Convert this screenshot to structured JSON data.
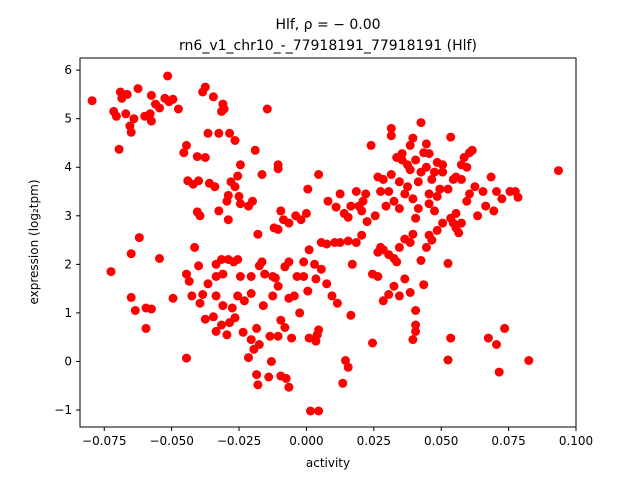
{
  "chart_data": {
    "type": "scatter",
    "title": "Hlf, ρ = − 0.00",
    "subtitle": "rn6_v1_chr10_-_77918191_77918191 (Hlf)",
    "xlabel": "activity",
    "ylabel": "expression (log₂tpm)",
    "xlim": [
      -0.084,
      0.1
    ],
    "ylim": [
      -1.35,
      6.25
    ],
    "xticks": [
      -0.075,
      -0.05,
      -0.025,
      0.0,
      0.025,
      0.05,
      0.075,
      0.1
    ],
    "xtick_labels": [
      "−0.075",
      "−0.050",
      "−0.025",
      "0.000",
      "0.025",
      "0.050",
      "0.075",
      "0.100"
    ],
    "yticks": [
      -1,
      0,
      1,
      2,
      3,
      4,
      5,
      6
    ],
    "ytick_labels": [
      "−1",
      "0",
      "1",
      "2",
      "3",
      "4",
      "5",
      "6"
    ],
    "grid": false,
    "marker_color": "#ff0000",
    "points": [
      [
        -0.0795,
        5.37
      ],
      [
        -0.0715,
        5.15
      ],
      [
        -0.0705,
        5.05
      ],
      [
        -0.069,
        5.55
      ],
      [
        -0.0685,
        5.42
      ],
      [
        -0.067,
        5.1
      ],
      [
        -0.0665,
        5.5
      ],
      [
        -0.064,
        5.0
      ],
      [
        -0.0655,
        4.85
      ],
      [
        -0.0625,
        5.62
      ],
      [
        -0.06,
        5.05
      ],
      [
        -0.058,
        5.1
      ],
      [
        -0.0575,
        5.48
      ],
      [
        -0.056,
        5.3
      ],
      [
        -0.0545,
        5.22
      ],
      [
        -0.0525,
        5.42
      ],
      [
        -0.051,
        5.35
      ],
      [
        -0.0515,
        5.88
      ],
      [
        -0.0495,
        5.4
      ],
      [
        -0.0475,
        5.2
      ],
      [
        -0.0575,
        4.95
      ],
      [
        -0.0695,
        4.37
      ],
      [
        -0.065,
        4.72
      ],
      [
        -0.0385,
        5.55
      ],
      [
        -0.0375,
        5.65
      ],
      [
        -0.0345,
        5.45
      ],
      [
        -0.031,
        5.3
      ],
      [
        -0.0315,
        5.15
      ],
      [
        -0.0305,
        5.2
      ],
      [
        -0.0145,
        5.2
      ],
      [
        -0.0445,
        4.45
      ],
      [
        -0.0455,
        4.3
      ],
      [
        -0.0405,
        4.22
      ],
      [
        -0.0365,
        4.7
      ],
      [
        -0.0375,
        4.2
      ],
      [
        -0.0325,
        4.7
      ],
      [
        -0.0285,
        4.7
      ],
      [
        -0.0265,
        4.55
      ],
      [
        -0.019,
        4.35
      ],
      [
        -0.0165,
        3.85
      ],
      [
        -0.0245,
        4.05
      ],
      [
        -0.0255,
        3.82
      ],
      [
        -0.0105,
        4.05
      ],
      [
        -0.0105,
        3.97
      ],
      [
        -0.044,
        3.72
      ],
      [
        -0.042,
        3.65
      ],
      [
        -0.04,
        3.72
      ],
      [
        -0.036,
        3.67
      ],
      [
        -0.034,
        3.6
      ],
      [
        -0.028,
        3.7
      ],
      [
        -0.0265,
        3.6
      ],
      [
        -0.029,
        3.42
      ],
      [
        -0.0295,
        3.3
      ],
      [
        -0.025,
        3.4
      ],
      [
        -0.02,
        3.3
      ],
      [
        -0.0405,
        3.08
      ],
      [
        -0.0395,
        3.0
      ],
      [
        -0.0325,
        3.1
      ],
      [
        -0.029,
        2.92
      ],
      [
        -0.0245,
        3.25
      ],
      [
        -0.0215,
        3.2
      ],
      [
        -0.018,
        2.62
      ],
      [
        -0.012,
        2.75
      ],
      [
        -0.0105,
        2.72
      ],
      [
        -0.0095,
        3.1
      ],
      [
        -0.0085,
        2.92
      ],
      [
        -0.0065,
        2.85
      ],
      [
        -0.002,
        2.92
      ],
      [
        -0.004,
        3.0
      ],
      [
        0.0,
        3.05
      ],
      [
        0.0005,
        3.55
      ],
      [
        0.0045,
        3.85
      ],
      [
        0.008,
        3.3
      ],
      [
        0.011,
        3.18
      ],
      [
        0.0125,
        3.45
      ],
      [
        0.014,
        3.05
      ],
      [
        0.0155,
        2.97
      ],
      [
        0.0165,
        3.2
      ],
      [
        0.0185,
        3.5
      ],
      [
        0.0195,
        3.2
      ],
      [
        0.021,
        3.3
      ],
      [
        0.0205,
        3.1
      ],
      [
        0.022,
        3.45
      ],
      [
        0.024,
        4.45
      ],
      [
        -0.062,
        2.55
      ],
      [
        -0.065,
        2.22
      ],
      [
        -0.0545,
        2.12
      ],
      [
        -0.0415,
        2.35
      ],
      [
        -0.04,
        1.97
      ],
      [
        -0.0335,
        2.0
      ],
      [
        -0.0315,
        2.1
      ],
      [
        -0.029,
        2.1
      ],
      [
        -0.027,
        2.05
      ],
      [
        -0.0255,
        2.1
      ],
      [
        -0.0245,
        1.75
      ],
      [
        -0.031,
        1.8
      ],
      [
        -0.0335,
        1.75
      ],
      [
        -0.0205,
        1.75
      ],
      [
        -0.0175,
        1.97
      ],
      [
        -0.0165,
        2.05
      ],
      [
        -0.0155,
        1.8
      ],
      [
        -0.0125,
        1.75
      ],
      [
        -0.0115,
        1.72
      ],
      [
        -0.008,
        1.95
      ],
      [
        -0.0065,
        2.05
      ],
      [
        -0.0035,
        1.75
      ],
      [
        -0.001,
        2.05
      ],
      [
        0.001,
        2.3
      ],
      [
        0.003,
        2.0
      ],
      [
        0.0055,
        2.45
      ],
      [
        0.0075,
        2.42
      ],
      [
        0.0105,
        2.45
      ],
      [
        0.0125,
        2.45
      ],
      [
        0.0155,
        2.48
      ],
      [
        0.017,
        2.0
      ],
      [
        0.0185,
        2.45
      ],
      [
        0.0205,
        2.6
      ],
      [
        0.0225,
        2.88
      ],
      [
        -0.0725,
        1.85
      ],
      [
        -0.065,
        1.32
      ],
      [
        -0.0635,
        1.05
      ],
      [
        -0.0595,
        1.1
      ],
      [
        -0.0575,
        1.08
      ],
      [
        -0.0595,
        0.68
      ],
      [
        -0.0495,
        1.3
      ],
      [
        -0.0445,
        1.8
      ],
      [
        -0.0435,
        1.65
      ],
      [
        -0.0425,
        1.35
      ],
      [
        -0.0395,
        1.2
      ],
      [
        -0.0385,
        1.38
      ],
      [
        -0.0365,
        1.6
      ],
      [
        -0.0335,
        1.35
      ],
      [
        -0.031,
        1.15
      ],
      [
        -0.0275,
        1.1
      ],
      [
        -0.0255,
        1.35
      ],
      [
        -0.023,
        1.25
      ],
      [
        -0.0205,
        1.4
      ],
      [
        -0.016,
        1.15
      ],
      [
        -0.0125,
        1.35
      ],
      [
        -0.0105,
        1.55
      ],
      [
        -0.0065,
        1.3
      ],
      [
        -0.0045,
        1.35
      ],
      [
        -0.0025,
        1.0
      ],
      [
        -0.001,
        1.75
      ],
      [
        0.0005,
        1.45
      ],
      [
        0.0035,
        1.7
      ],
      [
        0.0055,
        1.9
      ],
      [
        0.0075,
        1.6
      ],
      [
        0.0095,
        1.35
      ],
      [
        0.0115,
        1.2
      ],
      [
        0.0165,
        0.95
      ],
      [
        -0.0375,
        0.87
      ],
      [
        -0.0345,
        0.92
      ],
      [
        -0.0335,
        0.62
      ],
      [
        -0.0315,
        0.75
      ],
      [
        -0.0295,
        0.55
      ],
      [
        -0.0285,
        0.8
      ],
      [
        -0.0265,
        0.9
      ],
      [
        -0.0235,
        0.6
      ],
      [
        -0.0205,
        0.45
      ],
      [
        -0.0185,
        0.68
      ],
      [
        -0.0175,
        0.35
      ],
      [
        -0.0135,
        0.52
      ],
      [
        -0.0105,
        0.52
      ],
      [
        -0.0095,
        0.85
      ],
      [
        -0.008,
        0.7
      ],
      [
        -0.0055,
        0.48
      ],
      [
        0.001,
        0.48
      ],
      [
        0.0035,
        0.42
      ],
      [
        0.004,
        0.55
      ],
      [
        0.0045,
        0.65
      ],
      [
        -0.0445,
        0.07
      ],
      [
        -0.0215,
        0.08
      ],
      [
        -0.0195,
        0.25
      ],
      [
        -0.013,
        0.0
      ],
      [
        -0.0185,
        -0.27
      ],
      [
        -0.018,
        -0.48
      ],
      [
        -0.014,
        -0.32
      ],
      [
        -0.0095,
        -0.3
      ],
      [
        -0.0065,
        -0.53
      ],
      [
        -0.0075,
        -0.35
      ],
      [
        0.0015,
        -1.02
      ],
      [
        0.0045,
        -1.02
      ],
      [
        0.0145,
        0.02
      ],
      [
        0.0135,
        -0.45
      ],
      [
        0.0155,
        -0.12
      ],
      [
        0.0245,
        0.38
      ],
      [
        0.0285,
        1.25
      ],
      [
        0.0305,
        1.38
      ],
      [
        0.0325,
        1.55
      ],
      [
        0.0345,
        1.35
      ],
      [
        0.0245,
        1.8
      ],
      [
        0.0265,
        1.75
      ],
      [
        0.0365,
        1.7
      ],
      [
        0.0385,
        1.42
      ],
      [
        0.0405,
        1.05
      ],
      [
        0.0435,
        1.58
      ],
      [
        0.0405,
        0.75
      ],
      [
        0.0405,
        0.62
      ],
      [
        0.0395,
        0.45
      ],
      [
        0.0525,
        0.03
      ],
      [
        0.0535,
        0.48
      ],
      [
        0.0675,
        0.48
      ],
      [
        0.0705,
        0.35
      ],
      [
        0.0715,
        -0.22
      ],
      [
        0.0735,
        0.68
      ],
      [
        0.0825,
        0.02
      ],
      [
        0.0265,
        2.25
      ],
      [
        0.0275,
        2.35
      ],
      [
        0.0285,
        2.3
      ],
      [
        0.0305,
        2.2
      ],
      [
        0.0325,
        2.12
      ],
      [
        0.0335,
        2.05
      ],
      [
        0.0345,
        2.35
      ],
      [
        0.0365,
        2.52
      ],
      [
        0.0385,
        2.45
      ],
      [
        0.0395,
        2.62
      ],
      [
        0.0405,
        2.95
      ],
      [
        0.0425,
        2.08
      ],
      [
        0.0445,
        2.35
      ],
      [
        0.0455,
        2.6
      ],
      [
        0.0465,
        2.5
      ],
      [
        0.0485,
        2.7
      ],
      [
        0.0505,
        2.85
      ],
      [
        0.0525,
        2.02
      ],
      [
        0.0545,
        2.85
      ],
      [
        0.0555,
        2.75
      ],
      [
        0.0565,
        2.65
      ],
      [
        0.0575,
        2.85
      ],
      [
        0.0255,
        3.0
      ],
      [
        0.0265,
        3.8
      ],
      [
        0.0275,
        3.5
      ],
      [
        0.0295,
        3.2
      ],
      [
        0.0305,
        3.5
      ],
      [
        0.0315,
        3.85
      ],
      [
        0.0315,
        4.65
      ],
      [
        0.0315,
        4.8
      ],
      [
        0.0335,
        4.2
      ],
      [
        0.0345,
        3.7
      ],
      [
        0.0355,
        4.15
      ],
      [
        0.0365,
        3.45
      ],
      [
        0.0375,
        4.05
      ],
      [
        0.0385,
        3.95
      ],
      [
        0.0395,
        3.35
      ],
      [
        0.0395,
        4.6
      ],
      [
        0.0405,
        4.15
      ],
      [
        0.0415,
        3.7
      ],
      [
        0.0425,
        3.9
      ],
      [
        0.0435,
        4.3
      ],
      [
        0.0425,
        4.92
      ],
      [
        0.0445,
        4.48
      ],
      [
        0.0455,
        3.45
      ],
      [
        0.0465,
        3.75
      ],
      [
        0.0475,
        3.9
      ],
      [
        0.0485,
        4.1
      ],
      [
        0.0485,
        3.4
      ],
      [
        0.0505,
        4.05
      ],
      [
        0.0525,
        3.55
      ],
      [
        0.0535,
        4.62
      ],
      [
        0.0545,
        3.75
      ],
      [
        0.0555,
        3.8
      ],
      [
        0.0575,
        3.75
      ],
      [
        0.0585,
        4.2
      ],
      [
        0.0595,
        4.0
      ],
      [
        0.0605,
        4.3
      ],
      [
        0.0615,
        4.35
      ],
      [
        0.0625,
        3.6
      ],
      [
        0.0635,
        3.0
      ],
      [
        0.0655,
        3.5
      ],
      [
        0.0665,
        3.2
      ],
      [
        0.0685,
        3.8
      ],
      [
        0.0695,
        3.1
      ],
      [
        0.0705,
        3.5
      ],
      [
        0.0725,
        3.35
      ],
      [
        0.0755,
        3.5
      ],
      [
        0.0775,
        3.5
      ],
      [
        0.0785,
        3.38
      ],
      [
        0.0935,
        3.93
      ],
      [
        0.0285,
        3.75
      ],
      [
        0.0325,
        3.3
      ],
      [
        0.0345,
        3.15
      ],
      [
        0.0355,
        4.28
      ],
      [
        0.0375,
        3.6
      ],
      [
        0.0385,
        4.45
      ],
      [
        0.0415,
        3.15
      ],
      [
        0.0455,
        3.25
      ],
      [
        0.0475,
        3.1
      ],
      [
        0.0495,
        3.55
      ],
      [
        0.0535,
        2.95
      ],
      [
        0.0555,
        3.05
      ],
      [
        0.0595,
        3.3
      ],
      [
        0.0605,
        3.45
      ],
      [
        0.0445,
        4.0
      ],
      [
        0.0455,
        4.28
      ],
      [
        0.0505,
        3.9
      ],
      [
        0.0575,
        4.05
      ]
    ]
  }
}
